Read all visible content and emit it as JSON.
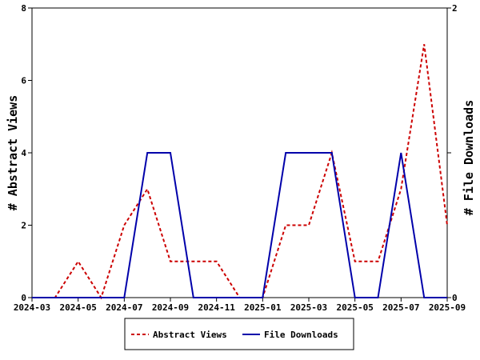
{
  "chart_data": {
    "type": "line",
    "x": [
      "2024-03",
      "2024-04",
      "2024-05",
      "2024-06",
      "2024-07",
      "2024-08",
      "2024-09",
      "2024-10",
      "2024-11",
      "2024-12",
      "2025-01",
      "2025-02",
      "2025-03",
      "2025-04",
      "2025-05",
      "2025-06",
      "2025-07",
      "2025-08",
      "2025-09"
    ],
    "x_ticks": [
      "2024-03",
      "2024-05",
      "2024-07",
      "2024-09",
      "2024-11",
      "2025-01",
      "2025-03",
      "2025-05",
      "2025-07",
      "2025-09"
    ],
    "series": [
      {
        "name": "Abstract Views",
        "axis": "left",
        "color": "#cc0000",
        "style": "dashed",
        "values": [
          0,
          0,
          1,
          0,
          2,
          3,
          1,
          1,
          1,
          0,
          0,
          2,
          2,
          4,
          1,
          1,
          3,
          7,
          2
        ]
      },
      {
        "name": "File Downloads",
        "axis": "right",
        "color": "#0000aa",
        "style": "solid",
        "values": [
          0,
          0,
          0,
          0,
          0,
          1,
          1,
          0,
          0,
          0,
          0,
          1,
          1,
          1,
          0,
          0,
          1,
          0,
          0
        ]
      }
    ],
    "ylabel_left": "# Abstract Views",
    "ylabel_right": "# File Downloads",
    "ylim_left": [
      0,
      8
    ],
    "yticks_left": [
      0,
      2,
      4,
      6,
      8
    ],
    "ylim_right": [
      0,
      2
    ],
    "yticks_right": [
      0,
      1,
      2
    ],
    "yticklabels_right": [
      "0",
      "",
      "2"
    ],
    "grid": false,
    "legend_position": "bottom-center"
  }
}
